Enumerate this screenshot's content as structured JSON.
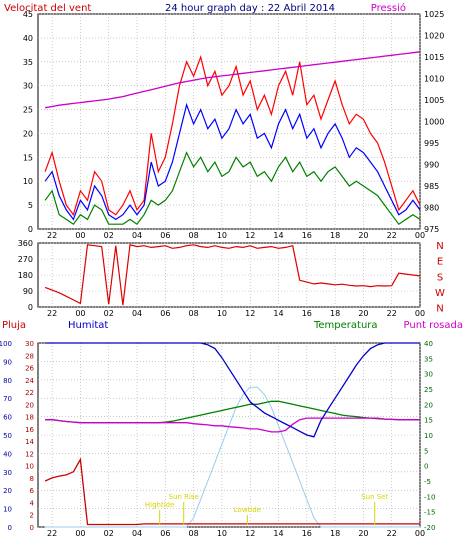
{
  "title": "24 hour graph day : 22 Abril 2014",
  "colors": {
    "wind": "#ff0000",
    "wind_avg": "#0000ff",
    "wind_low": "#008000",
    "pressure": "#cc00cc",
    "direction": "#dd0000",
    "rain": "#cc0000",
    "humidity": "#0000cc",
    "temperature": "#008000",
    "dewpoint": "#cc00cc",
    "sun": "#99ccee",
    "event": "#d6d600",
    "grid": "#aaaaaa",
    "frame": "#000000"
  },
  "chart_data": [
    {
      "type": "line",
      "title": "",
      "left_axis_label": "Velocitat del vent",
      "right_axis_label": "Pressió",
      "x_ticks": [
        "22",
        "00",
        "02",
        "04",
        "06",
        "08",
        "10",
        "12",
        "14",
        "16",
        "18",
        "20",
        "22",
        "00"
      ],
      "y_left": {
        "min": 0,
        "max": 45,
        "ticks": [
          0,
          5,
          10,
          15,
          20,
          25,
          30,
          35,
          40,
          45
        ]
      },
      "y_right": {
        "min": 975,
        "max": 1025,
        "ticks": [
          975,
          980,
          985,
          990,
          995,
          1000,
          1005,
          1010,
          1015,
          1020,
          1025
        ]
      },
      "grid": true,
      "hours": [
        21.5,
        22,
        22.5,
        23,
        23.5,
        24,
        24.5,
        25,
        25.5,
        26,
        26.5,
        27,
        27.5,
        28,
        28.5,
        29,
        29.5,
        30,
        30.5,
        31,
        31.5,
        32,
        32.5,
        33,
        33.5,
        34,
        34.5,
        35,
        35.5,
        36,
        36.5,
        37,
        37.5,
        38,
        38.5,
        39,
        39.5,
        40,
        40.5,
        41,
        41.5,
        42,
        42.5,
        43,
        43.5,
        44,
        44.5,
        45,
        45.5,
        46,
        46.5,
        47,
        47.5,
        48
      ],
      "series": [
        {
          "name": "gust",
          "color_key": "wind",
          "values": [
            12,
            16,
            10,
            5,
            3,
            8,
            6,
            12,
            10,
            4,
            3,
            5,
            8,
            4,
            6,
            20,
            12,
            15,
            22,
            30,
            35,
            32,
            36,
            30,
            33,
            28,
            30,
            34,
            28,
            31,
            25,
            28,
            24,
            30,
            33,
            28,
            35,
            26,
            28,
            23,
            27,
            31,
            26,
            22,
            24,
            23,
            20,
            18,
            14,
            9,
            4,
            6,
            8,
            5
          ],
          "axis": "left"
        },
        {
          "name": "average",
          "color_key": "wind_avg",
          "values": [
            10,
            12,
            7,
            4,
            2,
            6,
            4,
            9,
            7,
            3,
            2,
            3,
            5,
            3,
            5,
            14,
            9,
            10,
            14,
            20,
            26,
            22,
            25,
            21,
            23,
            19,
            21,
            25,
            22,
            24,
            19,
            20,
            17,
            22,
            25,
            21,
            24,
            19,
            21,
            17,
            20,
            22,
            19,
            15,
            17,
            16,
            14,
            12,
            9,
            6,
            3,
            4,
            6,
            4
          ],
          "axis": "left"
        },
        {
          "name": "low",
          "color_key": "wind_low",
          "values": [
            6,
            8,
            3,
            2,
            1,
            3,
            2,
            5,
            4,
            1,
            1,
            1,
            2,
            1,
            3,
            6,
            5,
            6,
            8,
            12,
            16,
            13,
            15,
            12,
            14,
            11,
            12,
            15,
            13,
            14,
            11,
            12,
            10,
            13,
            15,
            12,
            14,
            11,
            12,
            10,
            12,
            13,
            11,
            9,
            10,
            9,
            8,
            7,
            5,
            3,
            1,
            2,
            3,
            2
          ],
          "axis": "left"
        },
        {
          "name": "pressure",
          "color_key": "pressure",
          "values": [
            1003.2,
            1003.5,
            1003.8,
            1004.0,
            1004.2,
            1004.4,
            1004.6,
            1004.8,
            1005.0,
            1005.2,
            1005.5,
            1005.8,
            1006.2,
            1006.6,
            1007.0,
            1007.4,
            1007.8,
            1008.2,
            1008.6,
            1009.0,
            1009.3,
            1009.6,
            1009.9,
            1010.2,
            1010.4,
            1010.6,
            1010.8,
            1011.0,
            1011.2,
            1011.4,
            1011.6,
            1011.8,
            1012.0,
            1012.2,
            1012.4,
            1012.6,
            1012.8,
            1013.0,
            1013.2,
            1013.4,
            1013.6,
            1013.8,
            1014.0,
            1014.2,
            1014.4,
            1014.6,
            1014.8,
            1015.0,
            1015.2,
            1015.4,
            1015.6,
            1015.8,
            1016.0,
            1016.2
          ],
          "axis": "right"
        }
      ]
    },
    {
      "type": "line",
      "title": "",
      "y_ticks": [
        0,
        90,
        180,
        270,
        360
      ],
      "y_right_letters": [
        "N",
        "W",
        "S",
        "E",
        "N"
      ],
      "x_ticks": [
        "22",
        "00",
        "02",
        "04",
        "06",
        "08",
        "10",
        "12",
        "14",
        "16",
        "18",
        "20",
        "22",
        "00"
      ],
      "grid": true,
      "hours": [
        21.5,
        22,
        22.5,
        23,
        23.5,
        24,
        24.5,
        25,
        25.5,
        26,
        26.5,
        27,
        27.5,
        28,
        28.5,
        29,
        29.5,
        30,
        30.5,
        31,
        31.5,
        32,
        32.5,
        33,
        33.5,
        34,
        34.5,
        35,
        35.5,
        36,
        36.5,
        37,
        37.5,
        38,
        38.5,
        39,
        39.5,
        40,
        40.5,
        41,
        41.5,
        42,
        42.5,
        43,
        43.5,
        44,
        44.5,
        45,
        45.5,
        46,
        46.5,
        47,
        47.5,
        48
      ],
      "series": [
        {
          "name": "direction",
          "color_key": "direction",
          "values": [
            110,
            95,
            80,
            60,
            40,
            20,
            350,
            345,
            340,
            15,
            345,
            10,
            350,
            340,
            345,
            335,
            340,
            345,
            330,
            335,
            345,
            350,
            340,
            335,
            345,
            335,
            330,
            340,
            335,
            345,
            330,
            335,
            340,
            330,
            335,
            345,
            150,
            140,
            130,
            135,
            130,
            125,
            128,
            122,
            118,
            120,
            115,
            120,
            118,
            120,
            190,
            185,
            180,
            175
          ]
        }
      ]
    },
    {
      "type": "line",
      "title": "",
      "series_labels": {
        "rain": "Pluja",
        "humidity": "Humitat",
        "temperature": "Temperatura",
        "dewpoint": "Punt rosada"
      },
      "y_left_outer": {
        "min": 0,
        "max": 100,
        "ticks": [
          0,
          10,
          20,
          30,
          40,
          50,
          60,
          70,
          80,
          90,
          100
        ]
      },
      "y_left_inner": {
        "min": 0,
        "max": 30,
        "ticks": [
          0,
          2,
          4,
          6,
          8,
          10,
          12,
          14,
          16,
          18,
          20,
          22,
          24,
          26,
          28,
          30
        ]
      },
      "y_right": {
        "min": -20,
        "max": 40,
        "ticks": [
          -20,
          -15,
          -10,
          -5,
          0,
          5,
          10,
          15,
          20,
          25,
          30,
          35,
          40
        ]
      },
      "x_ticks": [
        "22",
        "00",
        "02",
        "04",
        "06",
        "08",
        "10",
        "12",
        "14",
        "16",
        "18",
        "20",
        "22",
        "00"
      ],
      "grid": true,
      "hours": [
        21.5,
        22,
        22.5,
        23,
        23.5,
        24,
        24.5,
        25,
        25.5,
        26,
        26.5,
        27,
        27.5,
        28,
        28.5,
        29,
        29.5,
        30,
        30.5,
        31,
        31.5,
        32,
        32.5,
        33,
        33.5,
        34,
        34.5,
        35,
        35.5,
        36,
        36.5,
        37,
        37.5,
        38,
        38.5,
        39,
        39.5,
        40,
        40.5,
        41,
        41.5,
        42,
        42.5,
        43,
        43.5,
        44,
        44.5,
        45,
        45.5,
        46,
        46.5,
        47,
        47.5,
        48
      ],
      "series": [
        {
          "name": "rain",
          "color_key": "rain",
          "axis": "inner",
          "values": [
            7.5,
            8,
            8.3,
            8.5,
            9,
            11,
            0.4,
            0.4,
            0.4,
            0.4,
            0.4,
            0.4,
            0.4,
            0.4,
            0.5,
            0.5,
            0.5,
            0.5,
            0.5,
            0.5,
            0.5,
            0.5,
            0.5,
            0.5,
            0.5,
            0.5,
            0.5,
            0.5,
            0.5,
            0.5,
            0.5,
            0.5,
            0.5,
            0.5,
            0.5,
            0.5,
            0.5,
            0.5,
            0.5,
            0.5,
            0.5,
            0.5,
            0.5,
            0.5,
            0.5,
            0.5,
            0.5,
            0.5,
            0.5,
            0.5,
            0.5,
            0.5,
            0.5,
            0.5
          ]
        },
        {
          "name": "humidity",
          "color_key": "humidity",
          "axis": "outer",
          "values": [
            100,
            100,
            100,
            100,
            100,
            100,
            100,
            100,
            100,
            100,
            100,
            100,
            100,
            100,
            100,
            100,
            100,
            100,
            100,
            100,
            100,
            100,
            100,
            99,
            97,
            92,
            86,
            80,
            74,
            68,
            65,
            62,
            60,
            58,
            56,
            54,
            52,
            50,
            49,
            58,
            64,
            70,
            76,
            82,
            88,
            93,
            97,
            99,
            100,
            100,
            100,
            100,
            100,
            100
          ]
        },
        {
          "name": "temperature",
          "color_key": "temperature",
          "axis": "right",
          "values": [
            15,
            15,
            14.7,
            14.4,
            14.2,
            14,
            14,
            14,
            14,
            14,
            14,
            14,
            14,
            14,
            14,
            14,
            14,
            14.2,
            14.5,
            15,
            15.5,
            16,
            16.5,
            17,
            17.5,
            18,
            18.5,
            19,
            19.5,
            20,
            20,
            20.5,
            21,
            21,
            20.5,
            20,
            19.5,
            19,
            18.5,
            18,
            17.5,
            17,
            16.5,
            16.2,
            16,
            15.7,
            15.5,
            15.3,
            15.2,
            15.1,
            15.0,
            15.0,
            15.0,
            15.0
          ]
        },
        {
          "name": "dewpoint",
          "color_key": "dewpoint",
          "axis": "right",
          "values": [
            15,
            15,
            14.7,
            14.4,
            14.2,
            14,
            14,
            14,
            14,
            14,
            14,
            14,
            14,
            14,
            14,
            14,
            14,
            14,
            14,
            14,
            14,
            13.7,
            13.5,
            13.3,
            13,
            13,
            12.7,
            12.5,
            12.3,
            12,
            12,
            11.5,
            11,
            11,
            11.5,
            13.5,
            15,
            15.5,
            15.5,
            15.5,
            15.5,
            15.5,
            15.5,
            15.5,
            15.5,
            15.5,
            15.5,
            15.5,
            15.2,
            15.1,
            15.0,
            15.0,
            15.0,
            15.0
          ]
        },
        {
          "name": "sun",
          "color_key": "sun",
          "axis": "outer",
          "values": [
            0,
            0,
            0,
            0,
            0,
            0,
            0,
            0,
            0,
            0,
            0,
            0,
            0,
            0,
            0,
            0,
            0,
            0,
            0,
            0,
            0,
            5,
            15,
            25,
            35,
            45,
            55,
            65,
            72,
            76,
            76,
            72,
            65,
            55,
            45,
            35,
            25,
            15,
            5,
            0,
            0,
            0,
            0,
            0,
            0,
            0,
            0,
            0,
            0,
            0,
            0,
            0,
            0,
            0
          ]
        }
      ],
      "annotations": [
        "Sun Rise",
        "Sun Set",
        "Hightide",
        "Lowtide"
      ]
    }
  ]
}
